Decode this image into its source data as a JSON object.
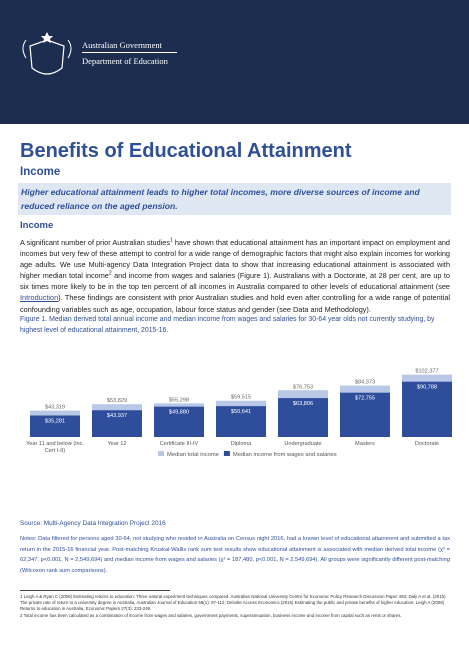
{
  "header": {
    "line1": "Australian Government",
    "line2": "Department of Education"
  },
  "title": "Benefits of Educational Attainment",
  "subtitle": "Income",
  "summary": "Higher educational attainment leads to higher total incomes, more diverse sources of income and reduced reliance on the aged pension.",
  "section_heading": "Income",
  "paragraph": [
    "A significant number of prior Australian studies",
    "1",
    " have shown that educational attainment has an important impact on employment and incomes but very few of these attempt to control for a wide range of demographic factors that might also explain incomes for working age adults. We use Multi-agency Data Integration Project data to show that increasing educational attainment is associated with higher median total income",
    "2",
    " and income from wages and salaries (Figure 1). Australians with a Doctorate, at 28 per cent, are up to six times more likely to be in the top ten percent of all incomes in Australia compared to other levels of educational attainment (see ",
    "Introduction",
    "). These findings are consistent with prior Australian studies and hold even after controlling for a wide range of potential confounding variables such as age, occupation, labour force status and gender (see Data and Methodology)."
  ],
  "caption": "Figure 1. Median derived total annual income and median income from wages and salaries for 30-64 year olds not currently studying, by highest level of educational attainment, 2015-16.",
  "chart_data": {
    "type": "bar",
    "categories": [
      "Year 11 and below (inc. Cert I-II)",
      "Year 12",
      "Certificate III-IV",
      "Diploma",
      "Undergraduate",
      "Masters",
      "Doctorate"
    ],
    "series": [
      {
        "name": "Median total income",
        "color": "#b9c8e6",
        "values": [
          43319,
          53829,
          55298,
          59515,
          76753,
          84373,
          102377
        ],
        "value_labels": [
          "$43,319",
          "$53,829",
          "$55,298",
          "$59,515",
          "$76,753",
          "$84,373",
          "$102,377"
        ]
      },
      {
        "name": "Median income from wages and salaries",
        "color": "#2e4e9c",
        "values": [
          35281,
          43937,
          49880,
          50641,
          63806,
          72755,
          90788
        ],
        "value_labels": [
          "$35,281",
          "$43,937",
          "$49,880",
          "$50,641",
          "$63,806",
          "$72,755",
          "$90,788"
        ]
      }
    ],
    "ylim": [
      0,
      110000
    ]
  },
  "source": "Source: Multi-Agency Data Integration Project 2016",
  "notes": "Notes: Data filtered for persons aged 30-64, not studying who resided in Australia on Census night 2016, had a known level of educational attainment and submitted a tax return in the 2015-16 financial year. Post-matching Kruskal-Wallis rank sum test results show educational attainment is associated with median derived total income (χ² = 62,347, p<0.001, N = 2,549,694) and median income from wages and salaries (χ² = 187,480, p<0.001, N = 2,549,694). All groups were significantly different post-matching (Wilcoxon rank sum comparisons).",
  "footnotes": [
    "1 Leigh A & Ryan C (2008) Estimating returns to education: Three natural experiment techniques compared. Australian National University Centre for Economic Policy Research Discussion Paper 493; Daly A et al. (2015) The private rate of return to a university degree in Australia, Australian Journal of Education 59(1): 97-112; Deloitte Access Economics (2016) Estimating the public and private benefits of higher education; Leigh A (2008) Returns to education in Australia, Economic Papers 27(3): 233-249.",
    "2 Total income has been calculated as a combination of income from wages and salaries, government payments, superannuation, business income and income from capital such as rents or shares."
  ]
}
